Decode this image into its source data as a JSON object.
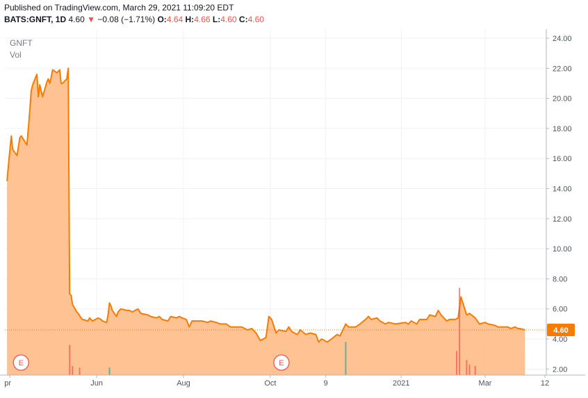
{
  "header": {
    "published": "Published on TradingView.com, March 29, 2021 11:09:20 EDT",
    "symbol": "BATS:GNFT, 1D",
    "last": "4.60",
    "change_arrow": "▼",
    "change": "−0.08 (−1.71%)",
    "o_label": "O:",
    "o_value": "4.64",
    "h_label": "H:",
    "h_value": "4.66",
    "l_label": "L:",
    "l_value": "4.60",
    "c_label": "C:",
    "c_value": "4.60"
  },
  "legend": {
    "symbol": "GNFT",
    "volume": "Vol"
  },
  "price_badge": "4.60",
  "earnings_marker": "E",
  "colors": {
    "line": "#f57c00",
    "area": "#ffbd8a",
    "badge": "#f57c00",
    "down": "#ef5350",
    "volume_up": "#26a69a",
    "volume_down": "#ef5350",
    "grid": "#eef0f3",
    "axis_text": "#4c525e"
  },
  "chart_data": {
    "type": "area",
    "ylim": [
      1.6,
      24.6
    ],
    "y_ticks": [
      "24.00",
      "22.00",
      "20.00",
      "18.00",
      "16.00",
      "14.00",
      "12.00",
      "10.00",
      "8.00",
      "6.00",
      "4.00",
      "2.00"
    ],
    "x_ticks": [
      "pr",
      "Jun",
      "Aug",
      "Oct",
      "9",
      "2021",
      "Mar",
      "12"
    ],
    "earnings_at": [
      "2020-04-01",
      "2020-10-01"
    ],
    "series": [
      {
        "values": [
          [
            "2020-03-30",
            14.5
          ],
          [
            "2020-03-31",
            15.6
          ],
          [
            "2020-04-02",
            17.5
          ],
          [
            "2020-04-03",
            16.6
          ],
          [
            "2020-04-06",
            16.2
          ],
          [
            "2020-04-08",
            17.4
          ],
          [
            "2020-04-09",
            17.5
          ],
          [
            "2020-04-13",
            16.9
          ],
          [
            "2020-04-15",
            19.2
          ],
          [
            "2020-04-16",
            20.5
          ],
          [
            "2020-04-17",
            20.9
          ],
          [
            "2020-04-20",
            21.6
          ],
          [
            "2020-04-21",
            20.1
          ],
          [
            "2020-04-22",
            20.9
          ],
          [
            "2020-04-24",
            20.1
          ],
          [
            "2020-04-27",
            21.1
          ],
          [
            "2020-04-28",
            21.3
          ],
          [
            "2020-04-29",
            21.0
          ],
          [
            "2020-04-30",
            21.4
          ],
          [
            "2020-05-01",
            21.9
          ],
          [
            "2020-05-04",
            21.7
          ],
          [
            "2020-05-06",
            21.9
          ],
          [
            "2020-05-07",
            21.0
          ],
          [
            "2020-05-08",
            21.0
          ],
          [
            "2020-05-11",
            21.3
          ],
          [
            "2020-05-12",
            22.0
          ],
          [
            "2020-05-13",
            7.0
          ],
          [
            "2020-05-14",
            6.9
          ],
          [
            "2020-05-15",
            6.3
          ],
          [
            "2020-05-18",
            5.8
          ],
          [
            "2020-05-19",
            5.7
          ],
          [
            "2020-05-21",
            5.4
          ],
          [
            "2020-05-22",
            5.3
          ],
          [
            "2020-05-26",
            5.2
          ],
          [
            "2020-05-27",
            5.4
          ],
          [
            "2020-05-28",
            5.3
          ],
          [
            "2020-05-29",
            5.2
          ],
          [
            "2020-06-02",
            5.4
          ],
          [
            "2020-06-04",
            5.3
          ],
          [
            "2020-06-05",
            5.2
          ],
          [
            "2020-06-08",
            5.1
          ],
          [
            "2020-06-09",
            5.6
          ],
          [
            "2020-06-10",
            6.4
          ],
          [
            "2020-06-11",
            6.2
          ],
          [
            "2020-06-12",
            5.9
          ],
          [
            "2020-06-15",
            5.5
          ],
          [
            "2020-06-16",
            5.8
          ],
          [
            "2020-06-18",
            6.0
          ],
          [
            "2020-06-22",
            5.9
          ],
          [
            "2020-06-24",
            5.9
          ],
          [
            "2020-06-26",
            5.8
          ],
          [
            "2020-06-30",
            6.0
          ],
          [
            "2020-07-02",
            5.7
          ],
          [
            "2020-07-07",
            5.6
          ],
          [
            "2020-07-09",
            5.5
          ],
          [
            "2020-07-13",
            5.4
          ],
          [
            "2020-07-15",
            5.5
          ],
          [
            "2020-07-17",
            5.3
          ],
          [
            "2020-07-21",
            5.2
          ],
          [
            "2020-07-23",
            5.5
          ],
          [
            "2020-07-27",
            5.4
          ],
          [
            "2020-07-29",
            5.5
          ],
          [
            "2020-07-31",
            5.4
          ],
          [
            "2020-08-03",
            5.3
          ],
          [
            "2020-08-05",
            4.8
          ],
          [
            "2020-08-07",
            5.2
          ],
          [
            "2020-08-11",
            5.2
          ],
          [
            "2020-08-14",
            5.2
          ],
          [
            "2020-08-18",
            5.1
          ],
          [
            "2020-08-20",
            5.2
          ],
          [
            "2020-08-24",
            5.1
          ],
          [
            "2020-08-27",
            5.0
          ],
          [
            "2020-08-31",
            5.0
          ],
          [
            "2020-09-03",
            4.8
          ],
          [
            "2020-09-08",
            4.8
          ],
          [
            "2020-09-11",
            4.8
          ],
          [
            "2020-09-15",
            4.6
          ],
          [
            "2020-09-18",
            4.7
          ],
          [
            "2020-09-21",
            4.4
          ],
          [
            "2020-09-24",
            3.9
          ],
          [
            "2020-09-28",
            4.1
          ],
          [
            "2020-09-30",
            5.5
          ],
          [
            "2020-10-02",
            5.3
          ],
          [
            "2020-10-05",
            4.4
          ],
          [
            "2020-10-07",
            4.6
          ],
          [
            "2020-10-12",
            4.5
          ],
          [
            "2020-10-14",
            4.8
          ],
          [
            "2020-10-16",
            4.5
          ],
          [
            "2020-10-20",
            4.3
          ],
          [
            "2020-10-22",
            4.6
          ],
          [
            "2020-10-26",
            4.3
          ],
          [
            "2020-10-29",
            4.4
          ],
          [
            "2020-11-02",
            4.3
          ],
          [
            "2020-11-04",
            3.8
          ],
          [
            "2020-11-06",
            4.0
          ],
          [
            "2020-11-10",
            3.8
          ],
          [
            "2020-11-13",
            4.0
          ],
          [
            "2020-11-17",
            4.3
          ],
          [
            "2020-11-19",
            4.2
          ],
          [
            "2020-11-23",
            5.0
          ],
          [
            "2020-11-25",
            4.8
          ],
          [
            "2020-11-30",
            4.8
          ],
          [
            "2020-12-03",
            5.0
          ],
          [
            "2020-12-07",
            5.3
          ],
          [
            "2020-12-09",
            5.5
          ],
          [
            "2020-12-11",
            5.3
          ],
          [
            "2020-12-15",
            5.4
          ],
          [
            "2020-12-17",
            5.2
          ],
          [
            "2020-12-21",
            5.0
          ],
          [
            "2020-12-23",
            5.1
          ],
          [
            "2020-12-28",
            5.0
          ],
          [
            "2021-01-04",
            5.1
          ],
          [
            "2021-01-06",
            5.0
          ],
          [
            "2021-01-08",
            5.2
          ],
          [
            "2021-01-12",
            5.0
          ],
          [
            "2021-01-14",
            5.3
          ],
          [
            "2021-01-19",
            5.3
          ],
          [
            "2021-01-21",
            5.6
          ],
          [
            "2021-01-25",
            5.5
          ],
          [
            "2021-01-27",
            5.9
          ],
          [
            "2021-01-29",
            5.6
          ],
          [
            "2021-02-02",
            5.2
          ],
          [
            "2021-02-04",
            5.3
          ],
          [
            "2021-02-08",
            5.3
          ],
          [
            "2021-02-10",
            5.4
          ],
          [
            "2021-02-12",
            6.8
          ],
          [
            "2021-02-16",
            5.6
          ],
          [
            "2021-02-18",
            5.7
          ],
          [
            "2021-02-22",
            5.4
          ],
          [
            "2021-02-25",
            5.0
          ],
          [
            "2021-03-01",
            5.1
          ],
          [
            "2021-03-03",
            5.0
          ],
          [
            "2021-03-08",
            4.9
          ],
          [
            "2021-03-10",
            4.8
          ],
          [
            "2021-03-15",
            4.8
          ],
          [
            "2021-03-17",
            4.8
          ],
          [
            "2021-03-19",
            4.7
          ],
          [
            "2021-03-22",
            4.8
          ],
          [
            "2021-03-24",
            4.7
          ],
          [
            "2021-03-26",
            4.68
          ],
          [
            "2021-03-29",
            4.6
          ]
        ]
      }
    ],
    "volume": [
      [
        "2020-05-13",
        3.6,
        "down"
      ],
      [
        "2020-05-15",
        2.2,
        "down"
      ],
      [
        "2020-05-20",
        2.1,
        "down"
      ],
      [
        "2020-06-10",
        2.1,
        "up"
      ],
      [
        "2020-11-23",
        3.8,
        "up"
      ],
      [
        "2021-02-11",
        7.4,
        "down"
      ],
      [
        "2021-02-09",
        3.2,
        "down"
      ],
      [
        "2021-02-16",
        2.6,
        "down"
      ],
      [
        "2021-02-18",
        2.3,
        "down"
      ],
      [
        "2021-02-22",
        2.2,
        "down"
      ]
    ],
    "last_value": 4.6
  }
}
